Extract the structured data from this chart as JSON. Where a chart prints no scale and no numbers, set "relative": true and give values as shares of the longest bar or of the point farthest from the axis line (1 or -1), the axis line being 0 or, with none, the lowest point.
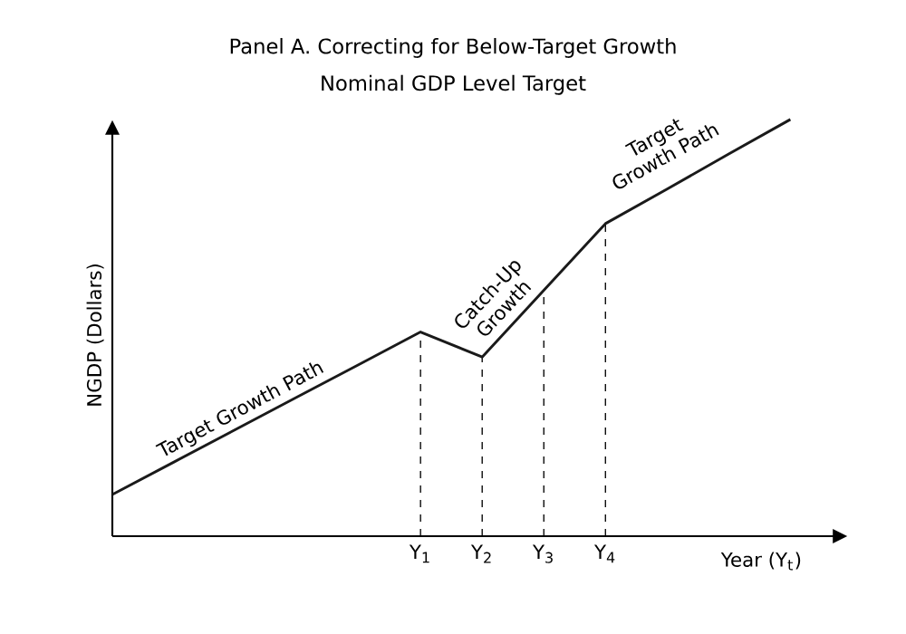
{
  "chart_data": {
    "type": "line",
    "title": "Panel A. Correcting for Below-Target Growth",
    "subtitle": "Nominal GDP Level Target",
    "xlabel": "Year (Y$_{t}$)",
    "ylabel": "NGDP (Dollars)",
    "relative": true,
    "categories": [
      null,
      null,
      null,
      null,
      null,
      "Y$_{1}$",
      "Y$_{2}$",
      "Y$_{3}$",
      "Y$_{4}$",
      null,
      null,
      null
    ],
    "series": [
      {
        "color": "#1a1a1a",
        "values": [
          0.1,
          0.178,
          0.256,
          0.334,
          0.412,
          0.49,
          0.43,
          0.59,
          0.75,
          0.833,
          0.917,
          1
        ]
      }
    ],
    "ref_lines": [
      {
        "axis": "x",
        "value": "Y$_{1}$",
        "line_style": "dashed"
      },
      {
        "axis": "x",
        "value": "Y$_{2}$",
        "line_style": "dashed"
      },
      {
        "axis": "x",
        "value": "Y$_{3}$",
        "line_style": "dashed"
      },
      {
        "axis": "x",
        "value": "Y$_{4}$",
        "line_style": "dashed"
      }
    ],
    "annotations": [
      "Target Growth Path",
      "Catch-Up Growth",
      "Target Growth Path"
    ]
  }
}
